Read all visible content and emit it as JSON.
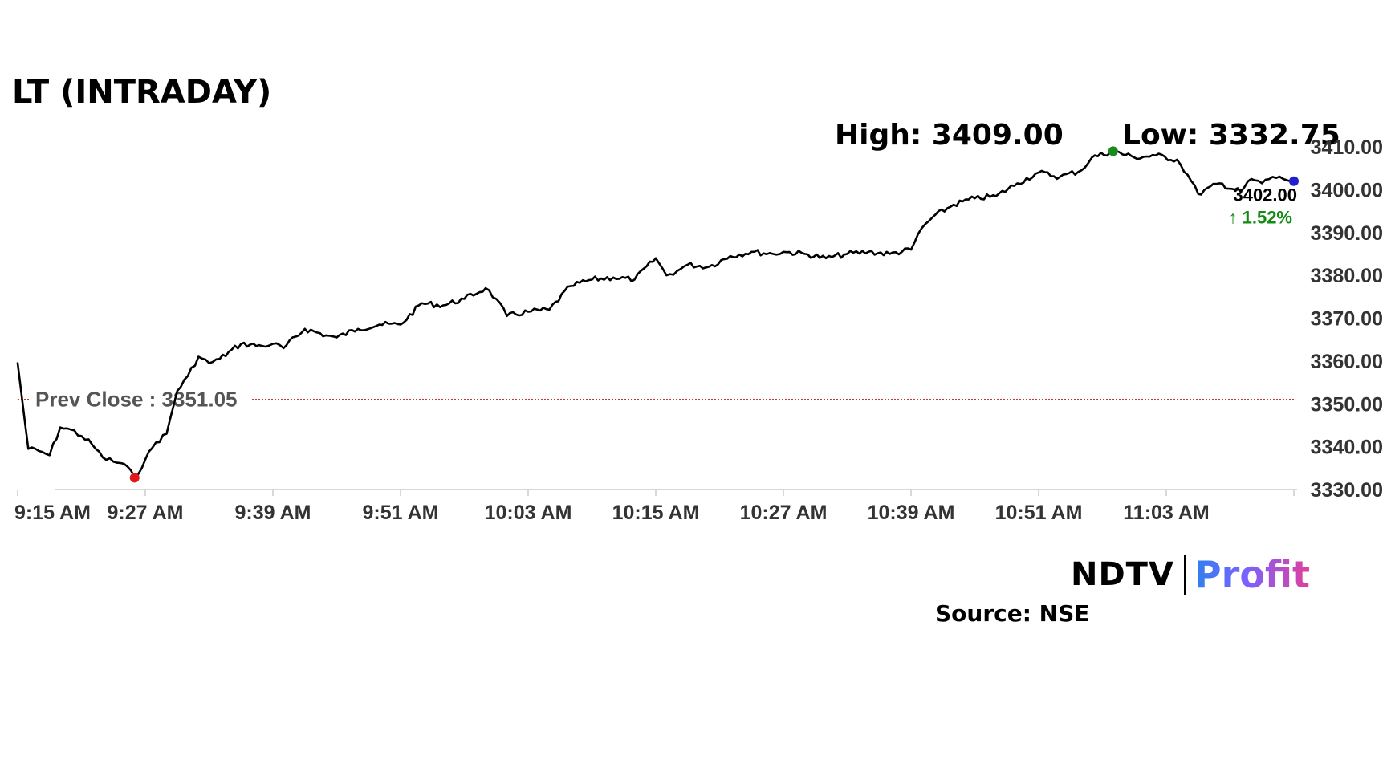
{
  "header": {
    "title": "LT (INTRADAY)",
    "high_label": "High: 3409.00",
    "low_label": "Low: 3332.75"
  },
  "footer": {
    "source": "Source: NSE",
    "brand_main": "NDTV",
    "brand_sub": "Profit"
  },
  "colors": {
    "line": "#000000",
    "prev_close_line": "#c0392b",
    "high_marker": "#1a8a1a",
    "low_marker": "#e0191f",
    "last_marker": "#1f1fcf",
    "change_up": "#138a13",
    "axis": "#cccccc",
    "tick_text": "#333333"
  },
  "chart_data": {
    "type": "line",
    "title": "LT (INTRADAY)",
    "xlabel": "",
    "ylabel": "",
    "x_ticks": [
      "9:15 AM",
      "9:27 AM",
      "9:39 AM",
      "9:51 AM",
      "10:03 AM",
      "10:15 AM",
      "10:27 AM",
      "10:39 AM",
      "10:51 AM",
      "11:03 AM"
    ],
    "y_ticks": [
      "3410.00",
      "3400.00",
      "3390.00",
      "3380.00",
      "3370.00",
      "3360.00",
      "3350.00",
      "3340.00",
      "3330.00"
    ],
    "ylim": [
      3330,
      3410
    ],
    "x_range": [
      "9:15 AM",
      "11:15 AM"
    ],
    "grid": false,
    "prev_close_label": "Prev Close : 3351.05",
    "prev_close": 3351.05,
    "high": 3409.0,
    "high_time": "10:58 AM",
    "low": 3332.75,
    "low_time": "9:26 AM",
    "last_price": "3402.00",
    "last_time": "11:15 AM",
    "change_pct": "1.52%",
    "series": [
      {
        "x": [
          "9:15 AM",
          "9:16 AM",
          "9:17 AM",
          "9:18 AM",
          "9:19 AM",
          "9:20 AM",
          "9:21 AM",
          "9:22 AM",
          "9:23 AM",
          "9:24 AM",
          "9:25 AM",
          "9:26 AM",
          "9:27 AM",
          "9:28 AM",
          "9:29 AM",
          "9:30 AM",
          "9:31 AM",
          "9:32 AM",
          "9:33 AM",
          "9:34 AM",
          "9:36 AM",
          "9:38 AM",
          "9:39 AM",
          "9:40 AM",
          "9:42 AM",
          "9:44 AM",
          "9:45 AM",
          "9:47 AM",
          "9:49 AM",
          "9:51 AM",
          "9:53 AM",
          "9:55 AM",
          "9:57 AM",
          "9:59 AM",
          "10:00 AM",
          "10:01 AM",
          "10:03 AM",
          "10:05 AM",
          "10:07 AM",
          "10:09 AM",
          "10:11 AM",
          "10:13 AM",
          "10:15 AM",
          "10:16 AM",
          "10:17 AM",
          "10:18 AM",
          "10:20 AM",
          "10:22 AM",
          "10:24 AM",
          "10:26 AM",
          "10:27 AM",
          "10:29 AM",
          "10:31 AM",
          "10:33 AM",
          "10:35 AM",
          "10:37 AM",
          "10:39 AM",
          "10:40 AM",
          "10:41 AM",
          "10:43 AM",
          "10:45 AM",
          "10:47 AM",
          "10:49 AM",
          "10:51 AM",
          "10:53 AM",
          "10:55 AM",
          "10:56 AM",
          "10:58 AM",
          "11:00 AM",
          "11:02 AM",
          "11:04 AM",
          "11:05 AM",
          "11:06 AM",
          "11:08 AM",
          "11:10 AM",
          "11:11 AM",
          "11:12 AM",
          "11:13 AM",
          "11:14 AM",
          "11:15 AM"
        ],
        "values": [
          3359.5,
          3339.5,
          3339.0,
          3338.0,
          3344.5,
          3344.0,
          3342.5,
          3340.5,
          3337.5,
          3336.5,
          3336.0,
          3332.75,
          3337.0,
          3341.0,
          3343.0,
          3353.0,
          3356.5,
          3361.0,
          3359.5,
          3360.5,
          3364.0,
          3363.5,
          3364.0,
          3363.0,
          3367.5,
          3366.0,
          3365.5,
          3367.5,
          3368.5,
          3368.5,
          3373.5,
          3373.0,
          3374.5,
          3377.0,
          3374.5,
          3370.5,
          3371.5,
          3372.0,
          3377.5,
          3379.0,
          3379.5,
          3379.0,
          3384.0,
          3380.0,
          3381.0,
          3382.5,
          3382.0,
          3384.5,
          3385.5,
          3385.0,
          3385.5,
          3385.0,
          3384.0,
          3385.0,
          3385.5,
          3385.0,
          3386.0,
          3391.0,
          3393.5,
          3396.5,
          3398.0,
          3398.5,
          3401.5,
          3404.0,
          3403.0,
          3404.5,
          3407.5,
          3409.0,
          3407.5,
          3408.0,
          3407.0,
          3403.5,
          3399.0,
          3401.5,
          3399.5,
          3402.5,
          3401.5,
          3403.0,
          3402.5,
          3402.0
        ]
      }
    ]
  }
}
